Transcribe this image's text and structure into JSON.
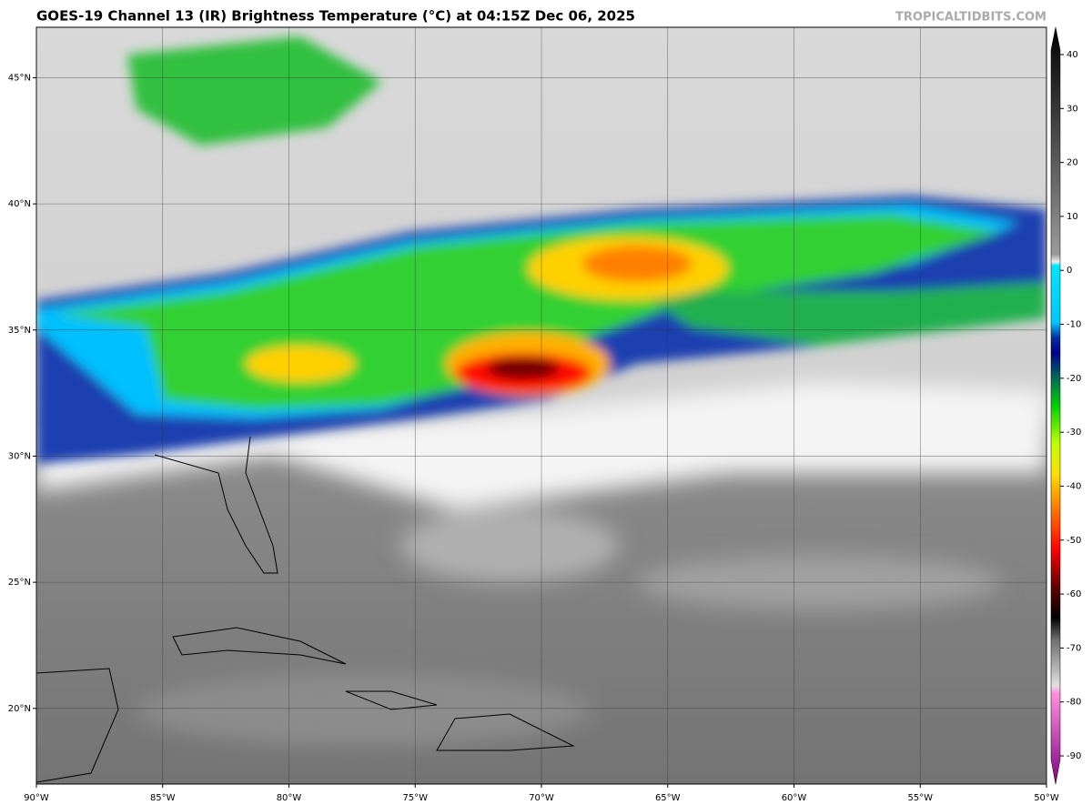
{
  "header": {
    "title": "GOES-19 Channel 13 (IR) Brightness Temperature (°C) at 04:15Z Dec 06, 2025",
    "credit": "TROPICALTIDBITS.COM"
  },
  "map": {
    "xlim": [
      -90,
      -50
    ],
    "ylim": [
      17,
      47
    ],
    "lon_ticks": [
      {
        "value": -90,
        "label": "90°W"
      },
      {
        "value": -85,
        "label": "85°W"
      },
      {
        "value": -80,
        "label": "80°W"
      },
      {
        "value": -75,
        "label": "75°W"
      },
      {
        "value": -70,
        "label": "70°W"
      },
      {
        "value": -65,
        "label": "65°W"
      },
      {
        "value": -60,
        "label": "60°W"
      },
      {
        "value": -55,
        "label": "55°W"
      },
      {
        "value": -50,
        "label": "50°W"
      }
    ],
    "lat_ticks": [
      {
        "value": 20,
        "label": "20°N"
      },
      {
        "value": 25,
        "label": "25°N"
      },
      {
        "value": 30,
        "label": "30°N"
      },
      {
        "value": 35,
        "label": "35°N"
      },
      {
        "value": 40,
        "label": "40°N"
      },
      {
        "value": 45,
        "label": "45°N"
      }
    ]
  },
  "colorbar": {
    "ticks": [
      40,
      30,
      20,
      10,
      0,
      -10,
      -20,
      -30,
      -40,
      -50,
      -60,
      -70,
      -80,
      -90
    ]
  }
}
